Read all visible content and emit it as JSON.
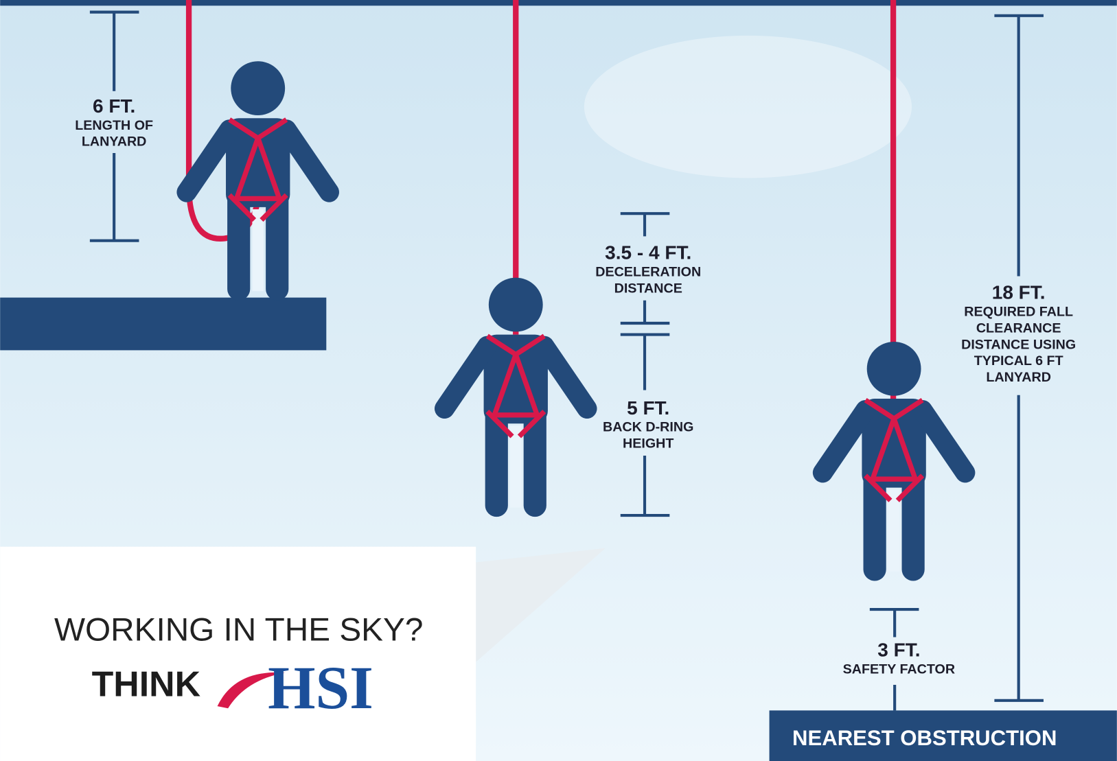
{
  "measures": [
    {
      "value": "6 FT.",
      "lines": [
        "LENGTH OF",
        "LANYARD"
      ]
    },
    {
      "value": "3.5 - 4 FT.",
      "lines": [
        "DECELERATION",
        "DISTANCE"
      ]
    },
    {
      "value": "5 FT.",
      "lines": [
        "BACK D-RING",
        "HEIGHT"
      ]
    },
    {
      "value": "18 FT.",
      "lines": [
        "REQUIRED FALL",
        "CLEARANCE",
        "DISTANCE USING",
        "TYPICAL 6 FT",
        "LANYARD"
      ]
    },
    {
      "value": "3 FT.",
      "lines": [
        "SAFETY FACTOR"
      ]
    }
  ],
  "obstruction": "NEAREST OBSTRUCTION",
  "logo": {
    "tagline": "WORKING IN THE SKY?",
    "think": "THINK",
    "brand": "HSI"
  }
}
